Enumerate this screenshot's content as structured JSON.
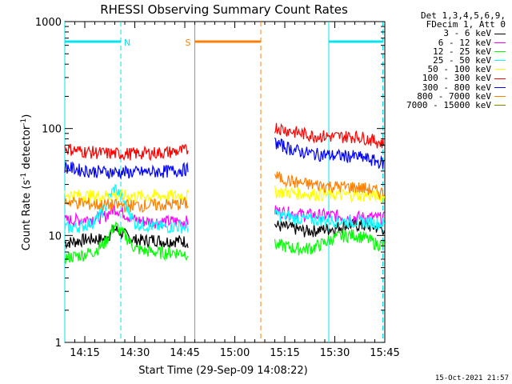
{
  "chart_data": {
    "type": "line",
    "title": "RHESSI Observing Summary Count Rates",
    "xlabel": "Start Time (29-Sep-09 14:08:22)",
    "ylabel_base": "Count Rate (s",
    "ylabel_sup1": "-1",
    "ylabel_mid": " detector",
    "ylabel_sup2": "-1",
    "ylabel_end": ")",
    "yscale": "log",
    "ylim": [
      1,
      1000
    ],
    "xlim_minutes": [
      14.15,
      15.75
    ],
    "x_ticks": [
      {
        "label": "14:15",
        "t": 14.25
      },
      {
        "label": "14:30",
        "t": 14.5
      },
      {
        "label": "14:45",
        "t": 14.75
      },
      {
        "label": "15:00",
        "t": 15.0
      },
      {
        "label": "15:15",
        "t": 15.25
      },
      {
        "label": "15:30",
        "t": 15.5
      },
      {
        "label": "15:45",
        "t": 15.75
      }
    ],
    "y_ticks": [
      {
        "label": "1",
        "v": 1
      },
      {
        "label": "10",
        "v": 10
      },
      {
        "label": "100",
        "v": 100
      },
      {
        "label": "1000",
        "v": 1000
      }
    ],
    "legend_header": [
      "Det 1,3,4,5,6,9,",
      "FDecim 1, Att 0"
    ],
    "series": [
      {
        "name": "3 - 6 keV",
        "color": "#000000",
        "segments": [
          {
            "x": [
              14.15,
              14.2,
              14.25,
              14.3,
              14.35,
              14.4,
              14.45,
              14.5,
              14.55,
              14.6,
              14.65,
              14.7,
              14.77
            ],
            "y": [
              8.6,
              8.8,
              9.2,
              9.3,
              9.2,
              11.5,
              10.2,
              9.1,
              9.0,
              9.2,
              8.8,
              9.0,
              8.8
            ]
          },
          {
            "x": [
              15.2,
              15.25,
              15.3,
              15.35,
              15.4,
              15.45,
              15.5,
              15.55,
              15.6,
              15.65,
              15.7,
              15.75
            ],
            "y": [
              12.5,
              12.0,
              11.6,
              11.0,
              11.2,
              11.5,
              11.7,
              12.5,
              12.6,
              12.3,
              12.0,
              11.5
            ]
          }
        ]
      },
      {
        "name": "6 - 12 keV",
        "color": "#ff00ff",
        "segments": [
          {
            "x": [
              14.15,
              14.2,
              14.25,
              14.3,
              14.35,
              14.4,
              14.45,
              14.5,
              14.55,
              14.6,
              14.65,
              14.7,
              14.77
            ],
            "y": [
              13.8,
              14.0,
              14.2,
              14.5,
              15.2,
              18.0,
              16.0,
              14.0,
              13.6,
              13.5,
              13.5,
              13.6,
              13.5
            ]
          },
          {
            "x": [
              15.2,
              15.25,
              15.3,
              15.35,
              15.4,
              15.45,
              15.5,
              15.55,
              15.6,
              15.65,
              15.7,
              15.75
            ],
            "y": [
              17.0,
              16.5,
              16.0,
              15.8,
              15.5,
              15.5,
              15.4,
              15.0,
              14.8,
              14.8,
              14.6,
              14.5
            ]
          }
        ]
      },
      {
        "name": "12 - 25 keV",
        "color": "#00ff00",
        "segments": [
          {
            "x": [
              14.15,
              14.2,
              14.25,
              14.3,
              14.35,
              14.4,
              14.45,
              14.5,
              14.55,
              14.6,
              14.65,
              14.7,
              14.77
            ],
            "y": [
              6.2,
              6.4,
              6.7,
              7.2,
              8.5,
              12.5,
              10.0,
              7.6,
              7.2,
              7.0,
              6.9,
              7.0,
              6.8
            ]
          },
          {
            "x": [
              15.2,
              15.25,
              15.3,
              15.35,
              15.4,
              15.45,
              15.5,
              15.55,
              15.6,
              15.65,
              15.7,
              15.75
            ],
            "y": [
              8.2,
              8.0,
              7.6,
              7.5,
              7.8,
              8.6,
              9.6,
              10.0,
              10.2,
              9.5,
              8.5,
              8.0
            ]
          }
        ]
      },
      {
        "name": "25 - 50 keV",
        "color": "#00ffff",
        "segments": [
          {
            "x": [
              14.15,
              14.2,
              14.25,
              14.3,
              14.35,
              14.4,
              14.45,
              14.5,
              14.55,
              14.6,
              14.65,
              14.7,
              14.77
            ],
            "y": [
              11.8,
              12.0,
              12.5,
              13.5,
              18.0,
              28.0,
              20.0,
              13.0,
              12.5,
              12.2,
              12.0,
              12.2,
              12.0
            ]
          },
          {
            "x": [
              15.2,
              15.25,
              15.3,
              15.35,
              15.4,
              15.45,
              15.5,
              15.55,
              15.6,
              15.65,
              15.7,
              15.75
            ],
            "y": [
              15.8,
              15.2,
              14.6,
              14.2,
              14.0,
              14.0,
              13.8,
              13.6,
              13.5,
              13.4,
              13.2,
              13.0
            ]
          }
        ]
      },
      {
        "name": "50 - 100 keV",
        "color": "#ffff00",
        "segments": [
          {
            "x": [
              14.15,
              14.2,
              14.25,
              14.3,
              14.35,
              14.4,
              14.45,
              14.5,
              14.55,
              14.6,
              14.65,
              14.7,
              14.77
            ],
            "y": [
              24.5,
              24.0,
              23.6,
              23.5,
              23.6,
              23.8,
              23.6,
              23.4,
              23.5,
              23.6,
              23.5,
              23.6,
              24.0
            ]
          },
          {
            "x": [
              15.2,
              15.25,
              15.3,
              15.35,
              15.4,
              15.45,
              15.5,
              15.55,
              15.6,
              15.65,
              15.7,
              15.75
            ],
            "y": [
              26.0,
              25.6,
              25.0,
              24.6,
              24.4,
              24.2,
              24.0,
              24.0,
              24.0,
              23.8,
              23.6,
              23.4
            ]
          }
        ]
      },
      {
        "name": "100 - 300 keV",
        "color": "#ff0000",
        "segments": [
          {
            "x": [
              14.15,
              14.2,
              14.25,
              14.3,
              14.35,
              14.4,
              14.45,
              14.5,
              14.55,
              14.6,
              14.65,
              14.7,
              14.77
            ],
            "y": [
              66.0,
              63.0,
              61.0,
              60.0,
              59.0,
              58.5,
              58.5,
              58.5,
              59.0,
              59.5,
              60.0,
              61.0,
              63.0
            ]
          },
          {
            "x": [
              15.2,
              15.25,
              15.3,
              15.35,
              15.4,
              15.45,
              15.5,
              15.55,
              15.6,
              15.65,
              15.7,
              15.75
            ],
            "y": [
              104.0,
              98.0,
              93.0,
              89.0,
              86.0,
              85.0,
              84.0,
              84.5,
              85.0,
              82.0,
              77.0,
              72.0
            ]
          }
        ]
      },
      {
        "name": "300 - 800 keV",
        "color": "#0000ff",
        "segments": [
          {
            "x": [
              14.15,
              14.2,
              14.25,
              14.3,
              14.35,
              14.4,
              14.45,
              14.5,
              14.55,
              14.6,
              14.65,
              14.7,
              14.77
            ],
            "y": [
              44.0,
              42.0,
              40.5,
              40.0,
              39.5,
              39.2,
              39.0,
              39.0,
              39.2,
              39.5,
              40.0,
              40.5,
              42.0
            ]
          },
          {
            "x": [
              15.2,
              15.25,
              15.3,
              15.35,
              15.4,
              15.45,
              15.5,
              15.55,
              15.6,
              15.65,
              15.7,
              15.75
            ],
            "y": [
              74.0,
              68.0,
              63.0,
              60.0,
              58.0,
              57.0,
              56.0,
              55.5,
              55.0,
              53.0,
              50.0,
              47.0
            ]
          }
        ]
      },
      {
        "name": "800 - 7000 keV",
        "color": "#ff8000",
        "segments": [
          {
            "x": [
              14.15,
              14.2,
              14.25,
              14.3,
              14.35,
              14.4,
              14.45,
              14.5,
              14.55,
              14.6,
              14.65,
              14.7,
              14.77
            ],
            "y": [
              21.0,
              20.5,
              20.0,
              19.6,
              19.4,
              19.2,
              19.2,
              19.2,
              19.2,
              19.3,
              19.4,
              19.6,
              20.0
            ]
          },
          {
            "x": [
              15.2,
              15.25,
              15.3,
              15.35,
              15.4,
              15.45,
              15.5,
              15.55,
              15.6,
              15.65,
              15.7,
              15.75
            ],
            "y": [
              36.0,
              33.5,
              31.5,
              30.5,
              29.8,
              29.2,
              28.8,
              28.6,
              28.4,
              27.6,
              26.4,
              25.0
            ]
          }
        ]
      },
      {
        "name": "7000 - 15000 keV",
        "color": "#808000",
        "segments": []
      }
    ],
    "annotations": [
      {
        "label": "N",
        "color": "#00e5ee",
        "bar": [
          14.15,
          14.43
        ],
        "lines": [
          {
            "t": 14.15,
            "style": "solid"
          },
          {
            "t": 14.43,
            "style": "dashed"
          }
        ]
      },
      {
        "label": "S",
        "color": "#ff8000",
        "bar": [
          14.8,
          15.13
        ],
        "lines": [
          {
            "t": 14.8,
            "style": "solid"
          },
          {
            "t": 15.13,
            "style": "dashed"
          }
        ]
      },
      {
        "label": "",
        "color": "#00e5ee",
        "bar": [
          15.47,
          15.74
        ],
        "lines": [
          {
            "t": 15.47,
            "style": "solid"
          },
          {
            "t": 15.74,
            "style": "dashed"
          }
        ]
      }
    ],
    "annotation_bar_value": 650,
    "grid": false,
    "legend_position": "top-right"
  },
  "timestamp": "15-Oct-2021 21:57"
}
